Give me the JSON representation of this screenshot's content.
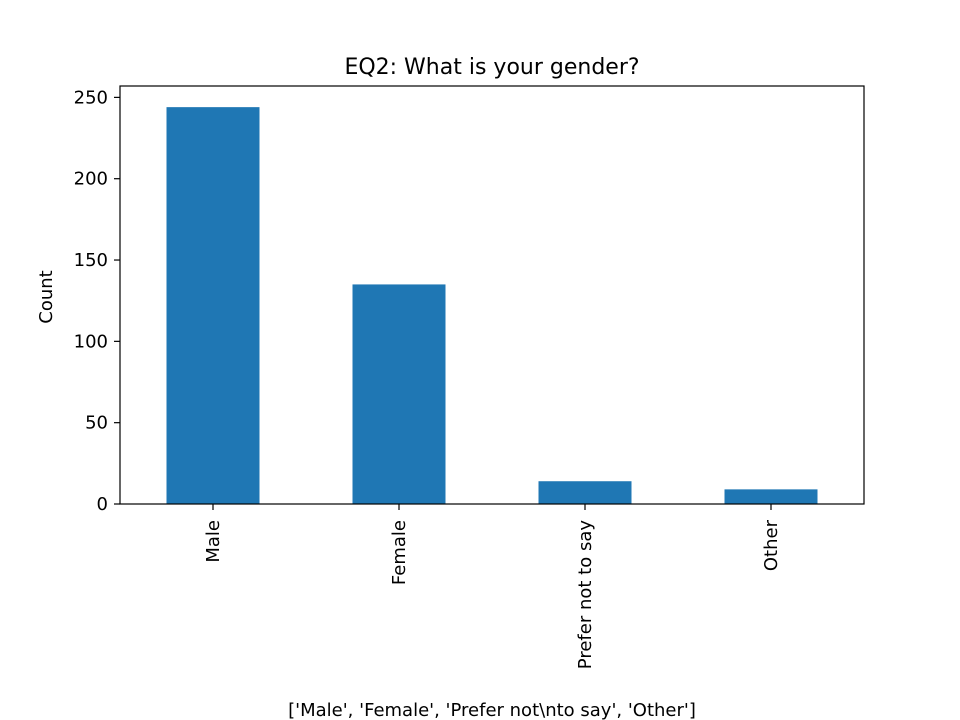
{
  "chart_data": {
    "type": "bar",
    "title": "EQ2: What is your gender?",
    "xlabel": "['Male', 'Female', 'Prefer not\\nto say', 'Other']",
    "ylabel": "Count",
    "categories": [
      "Male",
      "Female",
      "Prefer not to say",
      "Other"
    ],
    "values": [
      244,
      135,
      14,
      9
    ],
    "ylim": [
      0,
      257
    ],
    "yticks": [
      0,
      50,
      100,
      150,
      200,
      250
    ],
    "grid": false,
    "bar_color": "#1f77b4"
  }
}
